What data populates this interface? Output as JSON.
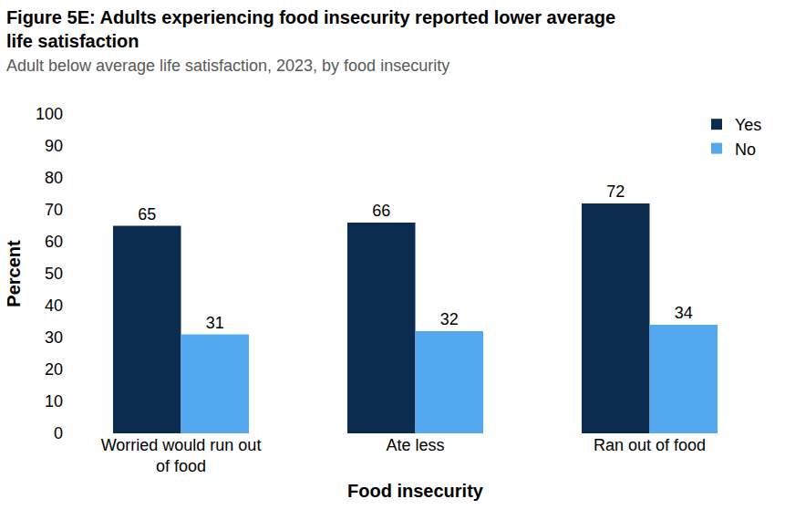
{
  "chart_data": {
    "type": "bar",
    "title": "Figure 5E: Adults experiencing food insecurity reported lower average\nlife satisfaction",
    "subtitle": "Adult below average life satisfaction, 2023, by food insecurity",
    "x_label": "Food insecurity",
    "y_label": "Percent",
    "categories": [
      "Worried would run out\nof food",
      "Ate less",
      "Ran out of food"
    ],
    "series": [
      {
        "name": "Yes",
        "color": "#0b2c4f",
        "values": [
          65,
          66,
          72
        ]
      },
      {
        "name": "No",
        "color": "#54a8f0",
        "values": [
          31,
          32,
          34
        ]
      }
    ],
    "ylim": [
      0,
      100
    ],
    "yticks": [
      0,
      10,
      20,
      30,
      40,
      50,
      60,
      70,
      80,
      90,
      100
    ],
    "grid": false,
    "legend": "top right",
    "data_labels": true
  }
}
